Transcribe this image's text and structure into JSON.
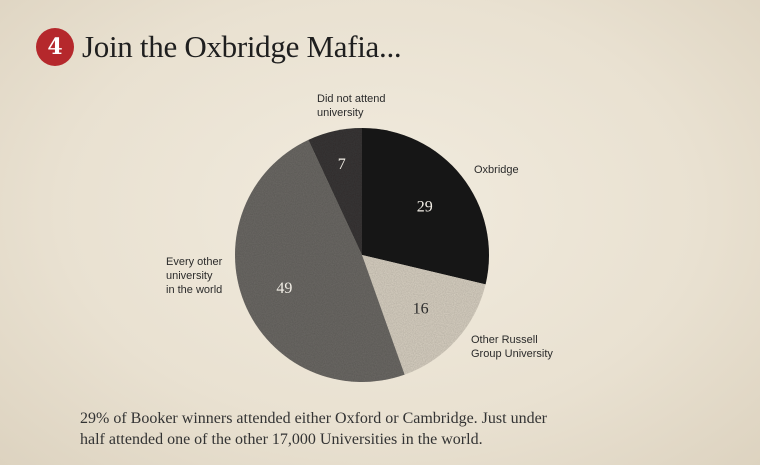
{
  "header": {
    "badge": "4",
    "title": "Join the Oxbridge Mafia..."
  },
  "chart_data": {
    "type": "pie",
    "title": "Join the Oxbridge Mafia...",
    "slices": [
      {
        "label": "Oxbridge",
        "value": 29,
        "color": "#1e1e1e"
      },
      {
        "label": "Other Russell Group University",
        "value": 16,
        "color": "#d9d1c3"
      },
      {
        "label": "Every other university in the world",
        "value": 49,
        "color": "#6d6a66"
      },
      {
        "label": "Did not attend university",
        "value": 7,
        "color": "#3a3938"
      }
    ]
  },
  "labels": {
    "oxbridge": [
      "Oxbridge"
    ],
    "russell": [
      "Other Russell",
      "Group University"
    ],
    "every": [
      "Every other",
      "university",
      "in the world"
    ],
    "notattend": [
      "Did not attend",
      "university"
    ]
  },
  "caption": {
    "line1": "29% of Booker winners attended either Oxford or Cambridge. Just under",
    "line2": "half attended one of the other 17,000 Universities in the world."
  }
}
